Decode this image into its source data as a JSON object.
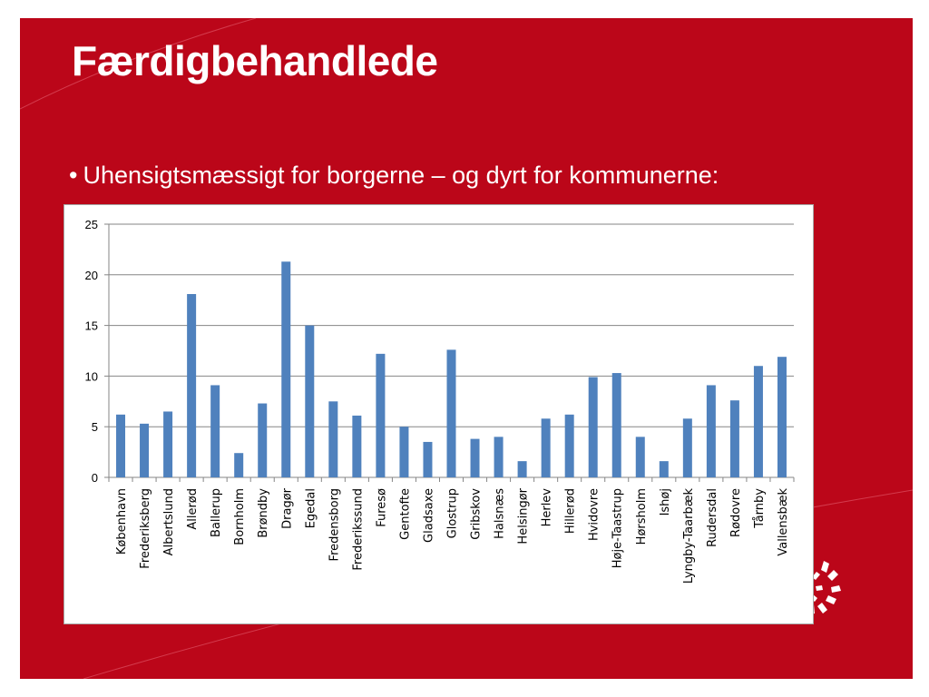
{
  "slide": {
    "title": "Færdigbehandlede",
    "bullet_marker": "•",
    "bullet_text": "Uhensigtsmæssigt for borgerne – og dyrt for kommunerne:",
    "background_color": "#bb0619"
  },
  "chart_data": {
    "type": "bar",
    "title": "",
    "xlabel": "",
    "ylabel": "",
    "ylim": [
      0,
      25
    ],
    "yticks": [
      0,
      5,
      10,
      15,
      20,
      25
    ],
    "grid": true,
    "legend": "none",
    "bar_color": "#4f81bd",
    "categories": [
      "København",
      "Frederiksberg",
      "Albertslund",
      "Allerød",
      "Ballerup",
      "Bornholm",
      "Brøndby",
      "Dragør",
      "Egedal",
      "Fredensborg",
      "Frederikssund",
      "Furesø",
      "Gentofte",
      "Gladsaxe",
      "Glostrup",
      "Gribskov",
      "Halsnæs",
      "Helsingør",
      "Herlev",
      "Hillerød",
      "Hvidovre",
      "Høje-Taastrup",
      "Hørsholm",
      "Ishøj",
      "Lyngby-Taarbæk",
      "Rudersdal",
      "Rødovre",
      "Tårnby",
      "Vallensbæk"
    ],
    "values": [
      6.2,
      5.3,
      6.5,
      18.1,
      9.1,
      2.4,
      7.3,
      21.3,
      15.0,
      7.5,
      6.1,
      12.2,
      5.0,
      3.5,
      12.6,
      3.8,
      4.0,
      1.6,
      5.8,
      6.2,
      9.9,
      10.3,
      4.0,
      1.6,
      5.8,
      9.1,
      7.6,
      11.0,
      11.9
    ]
  }
}
